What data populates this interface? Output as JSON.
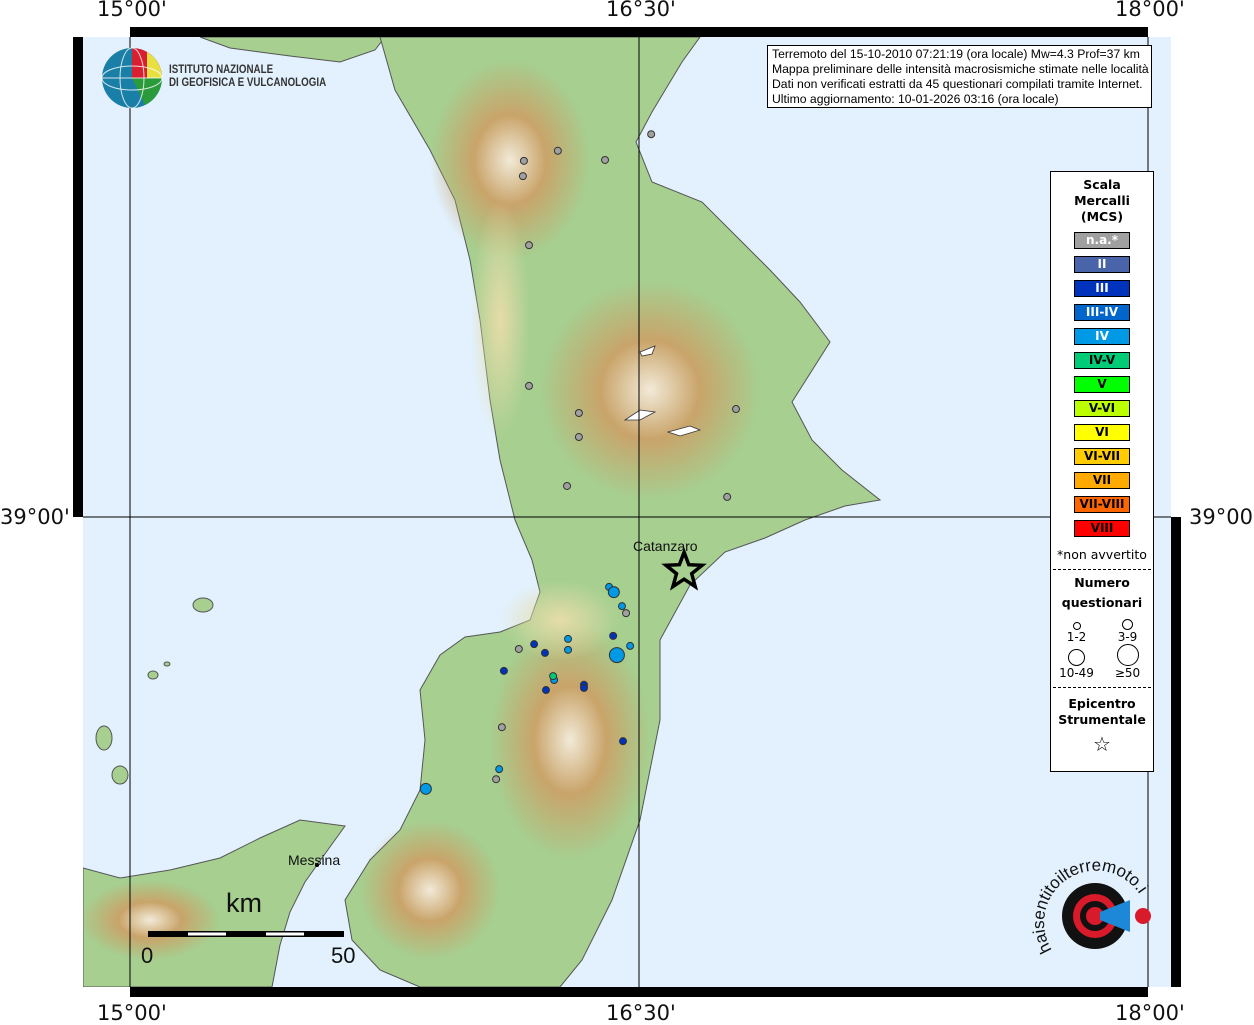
{
  "map": {
    "lon_labels": [
      "15°00'",
      "16°30'",
      "18°00'"
    ],
    "lat_labels": [
      "39°00'"
    ],
    "place_labels": [
      "Catanzaro",
      "Messina"
    ],
    "colors": {
      "sea": "#e2f1fd",
      "land": "#9fcb8c",
      "relief": "#c9a46a",
      "grid": "#000000"
    }
  },
  "info": {
    "lines": [
      "Terremoto del 15-10-2010 07:21:19 (ora locale) Mw=4.3 Prof=37 km",
      "Mappa preliminare delle intensità macrosismiche stimate nelle località",
      "Dati non verificati estratti da 45 questionari compilati tramite Internet.",
      "Ultimo aggiornamento: 10-01-2026 03:16 (ora locale)"
    ]
  },
  "logo_ingv": {
    "line1": "ISTITUTO NAZIONALE",
    "line2": "DI GEOFISICA E VULCANOLOGIA"
  },
  "logo_hsit": {
    "text": "www.haisentitoilterremoto.it"
  },
  "legend": {
    "title": [
      "Scala",
      "Mercalli",
      "(MCS)"
    ],
    "classes": [
      {
        "label": "n.a.*",
        "color": "#a0a0a0",
        "text_color": "#ffffff"
      },
      {
        "label": "II",
        "color": "#4a64aa",
        "text_color": "#ffffff"
      },
      {
        "label": "III",
        "color": "#0033bb",
        "text_color": "#ffffff"
      },
      {
        "label": "III-IV",
        "color": "#0066cc",
        "text_color": "#ffffff"
      },
      {
        "label": "IV",
        "color": "#0099e6",
        "text_color": "#ffffff"
      },
      {
        "label": "IV-V",
        "color": "#00cc77",
        "text_color": "#000000"
      },
      {
        "label": "V",
        "color": "#00ff00",
        "text_color": "#000000"
      },
      {
        "label": "V-VI",
        "color": "#bbff00",
        "text_color": "#000000"
      },
      {
        "label": "VI",
        "color": "#ffff00",
        "text_color": "#000000"
      },
      {
        "label": "VI-VII",
        "color": "#ffcc00",
        "text_color": "#000000"
      },
      {
        "label": "VII",
        "color": "#ffaa00",
        "text_color": "#000000"
      },
      {
        "label": "VII-VIII",
        "color": "#ff6600",
        "text_color": "#000000"
      },
      {
        "label": "VIII",
        "color": "#ff0000",
        "text_color": "#000000"
      }
    ],
    "note": "*non avvertito",
    "size_title": [
      "Numero",
      "questionari"
    ],
    "sizes": [
      "1-2",
      "3-9",
      "10-49",
      "≥50"
    ],
    "epicenter_title": [
      "Epicentro",
      "Strumentale"
    ]
  },
  "scalebar": {
    "unit": "km",
    "start": "0",
    "end": "50"
  },
  "epicenter": {
    "lon": 16.633,
    "lat": 38.876
  },
  "observations": [
    {
      "lon": 16.536,
      "lat": 39.876,
      "mcs": "n.a.*",
      "size": "1-2"
    },
    {
      "lon": 16.261,
      "lat": 39.838,
      "mcs": "n.a.*",
      "size": "1-2"
    },
    {
      "lon": 16.4,
      "lat": 39.817,
      "mcs": "n.a.*",
      "size": "1-2"
    },
    {
      "lon": 16.161,
      "lat": 39.815,
      "mcs": "n.a.*",
      "size": "1-2"
    },
    {
      "lon": 16.158,
      "lat": 39.78,
      "mcs": "n.a.*",
      "size": "1-2"
    },
    {
      "lon": 16.176,
      "lat": 39.622,
      "mcs": "n.a.*",
      "size": "1-2"
    },
    {
      "lon": 16.176,
      "lat": 39.3,
      "mcs": "n.a.*",
      "size": "1-2"
    },
    {
      "lon": 16.323,
      "lat": 39.238,
      "mcs": "n.a.*",
      "size": "1-2"
    },
    {
      "lon": 16.323,
      "lat": 39.183,
      "mcs": "n.a.*",
      "size": "1-2"
    },
    {
      "lon": 16.786,
      "lat": 39.247,
      "mcs": "n.a.*",
      "size": "1-2"
    },
    {
      "lon": 16.288,
      "lat": 39.071,
      "mcs": "n.a.*",
      "size": "1-2"
    },
    {
      "lon": 16.76,
      "lat": 39.046,
      "mcs": "n.a.*",
      "size": "1-2"
    },
    {
      "lon": 16.462,
      "lat": 38.78,
      "mcs": "n.a.*",
      "size": "1-2"
    },
    {
      "lon": 16.146,
      "lat": 38.698,
      "mcs": "n.a.*",
      "size": "1-2"
    },
    {
      "lon": 16.096,
      "lat": 38.519,
      "mcs": "n.a.*",
      "size": "1-2"
    },
    {
      "lon": 16.079,
      "lat": 38.4,
      "mcs": "n.a.*",
      "size": "1-2"
    },
    {
      "lon": 16.412,
      "lat": 38.84,
      "mcs": "IV",
      "size": "1-2"
    },
    {
      "lon": 16.426,
      "lat": 38.828,
      "mcs": "IV",
      "size": "3-9"
    },
    {
      "lon": 16.45,
      "lat": 38.796,
      "mcs": "IV",
      "size": "1-2"
    },
    {
      "lon": 16.424,
      "lat": 38.728,
      "mcs": "III",
      "size": "1-2"
    },
    {
      "lon": 16.474,
      "lat": 38.705,
      "mcs": "IV",
      "size": "1-2"
    },
    {
      "lon": 16.435,
      "lat": 38.684,
      "mcs": "IV",
      "size": "10-49"
    },
    {
      "lon": 16.291,
      "lat": 38.721,
      "mcs": "IV",
      "size": "1-2"
    },
    {
      "lon": 16.291,
      "lat": 38.696,
      "mcs": "IV",
      "size": "1-2"
    },
    {
      "lon": 16.191,
      "lat": 38.709,
      "mcs": "III",
      "size": "1-2"
    },
    {
      "lon": 16.223,
      "lat": 38.689,
      "mcs": "III",
      "size": "1-2"
    },
    {
      "lon": 16.102,
      "lat": 38.648,
      "mcs": "III",
      "size": "1-2"
    },
    {
      "lon": 16.25,
      "lat": 38.627,
      "mcs": "IV",
      "size": "1-2"
    },
    {
      "lon": 16.247,
      "lat": 38.636,
      "mcs": "IV-V",
      "size": "1-2"
    },
    {
      "lon": 16.226,
      "lat": 38.604,
      "mcs": "III",
      "size": "1-2"
    },
    {
      "lon": 16.338,
      "lat": 38.616,
      "mcs": "III",
      "size": "1-2"
    },
    {
      "lon": 16.338,
      "lat": 38.609,
      "mcs": "III",
      "size": "1-2"
    },
    {
      "lon": 16.453,
      "lat": 38.487,
      "mcs": "III",
      "size": "1-2"
    },
    {
      "lon": 16.088,
      "lat": 38.423,
      "mcs": "IV",
      "size": "1-2"
    },
    {
      "lon": 15.872,
      "lat": 38.378,
      "mcs": "IV",
      "size": "3-9"
    }
  ]
}
